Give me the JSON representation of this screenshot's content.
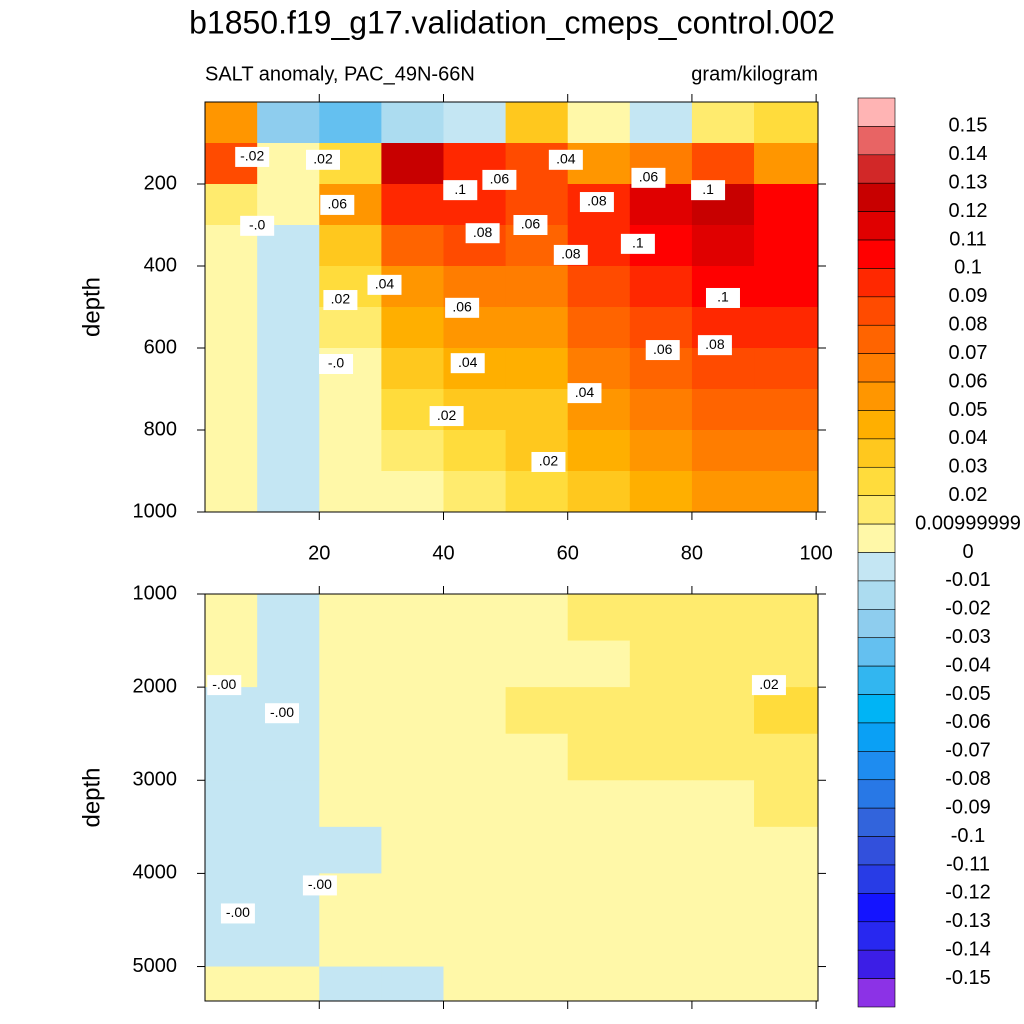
{
  "chart_data": [
    {
      "type": "contour",
      "title": "b1850.f19_g17.validation_cmeps_control.002",
      "subtitle_left": "SALT anomaly, PAC_49N-66N",
      "subtitle_right": "gram/kilogram",
      "ylabel": "depth",
      "xlim": [
        1.6,
        100.3
      ],
      "ylim": [
        0,
        1000
      ],
      "yreverse": true,
      "xticks": [
        20,
        40,
        60,
        80,
        100
      ],
      "yticks": [
        200,
        400,
        600,
        800,
        1000
      ],
      "x_edges": [
        1.6,
        10,
        20,
        30,
        40,
        50,
        60,
        70,
        80,
        90,
        100.3
      ],
      "y_edges": [
        0,
        100,
        200,
        300,
        400,
        500,
        600,
        700,
        800,
        900,
        1000
      ],
      "z": [
        [
          0.05,
          -0.03,
          -0.04,
          -0.02,
          -0.01,
          0.03,
          0.0,
          -0.01,
          0.01,
          0.02
        ],
        [
          0.08,
          0.0,
          0.02,
          0.12,
          0.09,
          0.08,
          0.05,
          0.06,
          0.08,
          0.05
        ],
        [
          0.01,
          0.005,
          0.05,
          0.09,
          0.09,
          0.08,
          0.09,
          0.11,
          0.12,
          0.1
        ],
        [
          0.005,
          -0.005,
          0.03,
          0.07,
          0.08,
          0.07,
          0.09,
          0.1,
          0.11,
          0.1
        ],
        [
          0.005,
          -0.005,
          0.02,
          0.05,
          0.06,
          0.06,
          0.08,
          0.09,
          0.1,
          0.1
        ],
        [
          0.005,
          -0.005,
          0.01,
          0.04,
          0.05,
          0.05,
          0.07,
          0.08,
          0.09,
          0.09
        ],
        [
          0.005,
          -0.005,
          0.005,
          0.03,
          0.04,
          0.04,
          0.06,
          0.07,
          0.08,
          0.08
        ],
        [
          0.005,
          -0.005,
          0.005,
          0.02,
          0.03,
          0.03,
          0.05,
          0.06,
          0.07,
          0.07
        ],
        [
          0.005,
          -0.005,
          0.005,
          0.01,
          0.02,
          0.03,
          0.04,
          0.05,
          0.06,
          0.06
        ],
        [
          0.005,
          -0.005,
          0.005,
          0.005,
          0.01,
          0.02,
          0.03,
          0.04,
          0.05,
          0.05
        ]
      ],
      "contour_labels": [
        {
          "label": "-.02",
          "x": 9.2,
          "y": 134
        },
        {
          "label": ".02",
          "x": 20.6,
          "y": 141
        },
        {
          "label": ".06",
          "x": 22.9,
          "y": 251
        },
        {
          "label": "-.0",
          "x": 10,
          "y": 302
        },
        {
          "label": ".1",
          "x": 42.7,
          "y": 215
        },
        {
          "label": ".06",
          "x": 49,
          "y": 190
        },
        {
          "label": ".08",
          "x": 46.3,
          "y": 320
        },
        {
          "label": ".06",
          "x": 54,
          "y": 300
        },
        {
          "label": ".04",
          "x": 59.7,
          "y": 141
        },
        {
          "label": ".08",
          "x": 64.7,
          "y": 244
        },
        {
          "label": ".08",
          "x": 60.5,
          "y": 373
        },
        {
          "label": ".06",
          "x": 73,
          "y": 185
        },
        {
          "label": ".1",
          "x": 82.6,
          "y": 215
        },
        {
          "label": ".1",
          "x": 71.3,
          "y": 346
        },
        {
          "label": ".04",
          "x": 30.5,
          "y": 446
        },
        {
          "label": ".02",
          "x": 23.4,
          "y": 483
        },
        {
          "label": ".06",
          "x": 43,
          "y": 502
        },
        {
          "label": ".1",
          "x": 85,
          "y": 478
        },
        {
          "label": ".06",
          "x": 75.3,
          "y": 605
        },
        {
          "label": ".08",
          "x": 83.7,
          "y": 593
        },
        {
          "label": "-.0",
          "x": 22.7,
          "y": 639
        },
        {
          "label": ".04",
          "x": 43.9,
          "y": 637
        },
        {
          "label": ".04",
          "x": 62.7,
          "y": 710
        },
        {
          "label": ".02",
          "x": 40.5,
          "y": 766
        },
        {
          "label": ".02",
          "x": 56.9,
          "y": 878
        }
      ],
      "colorbar": {
        "levels": [
          0.15,
          0.14,
          0.13,
          0.12,
          0.11,
          0.1,
          0.09,
          0.08,
          0.07,
          0.06,
          0.05,
          0.04,
          0.03,
          0.02,
          0.00999999,
          0,
          -0.01,
          -0.02,
          -0.03,
          -0.04,
          -0.05,
          -0.06,
          -0.07,
          -0.08,
          -0.09,
          -0.1,
          -0.11,
          -0.12,
          -0.13,
          -0.14,
          -0.15
        ],
        "colors": [
          "#ffb4b4",
          "#e86464",
          "#d22828",
          "#c80000",
          "#e00000",
          "#ff0000",
          "#ff2800",
          "#ff4b00",
          "#ff6400",
          "#ff7d00",
          "#ff9600",
          "#ffaf00",
          "#ffc81e",
          "#ffdc3c",
          "#ffeb6e",
          "#fff8a8",
          "#c4e6f3",
          "#acdcf0",
          "#8ecdee",
          "#64c0f0",
          "#32b6f0",
          "#00b4f5",
          "#0aa0f5",
          "#1e8cf0",
          "#2878e6",
          "#3264dc",
          "#3250dc",
          "#283ce6",
          "#1414ff",
          "#2828f0",
          "#3c1ee6",
          "#8c32e6"
        ]
      }
    },
    {
      "type": "contour",
      "ylabel": "depth",
      "xlim": [
        1.6,
        100.3
      ],
      "ylim": [
        1000,
        5370
      ],
      "yreverse": true,
      "xticks": [
        20,
        40,
        60,
        80,
        100
      ],
      "yticks": [
        1000,
        2000,
        3000,
        4000,
        5000
      ],
      "x_edges": [
        1.6,
        10,
        20,
        30,
        40,
        50,
        60,
        70,
        80,
        90,
        100.3
      ],
      "y_edges": [
        1000,
        1500,
        2000,
        2500,
        3000,
        3500,
        4000,
        4500,
        5000,
        5370
      ],
      "z": [
        [
          0.005,
          -0.005,
          0.005,
          0.005,
          0.005,
          0.005,
          0.01,
          0.01,
          0.01,
          0.015
        ],
        [
          0.005,
          -0.005,
          0.005,
          0.005,
          0.005,
          0.005,
          0.005,
          0.01,
          0.01,
          0.015
        ],
        [
          -0.005,
          -0.005,
          0.005,
          0.005,
          0.005,
          0.01,
          0.01,
          0.01,
          0.01,
          0.02
        ],
        [
          -0.005,
          -0.005,
          0.005,
          0.005,
          0.005,
          0.005,
          0.01,
          0.01,
          0.01,
          0.01
        ],
        [
          -0.005,
          -0.005,
          0.005,
          0.005,
          0.005,
          0.005,
          0.005,
          0.005,
          0.005,
          0.01
        ],
        [
          -0.005,
          -0.005,
          -0.005,
          0.005,
          0.005,
          0.005,
          0.005,
          0.005,
          0.005,
          0.005
        ],
        [
          -0.005,
          -0.005,
          0.005,
          0.005,
          0.005,
          0.005,
          0.005,
          0.005,
          0.005,
          0.005
        ],
        [
          -0.005,
          -0.005,
          0.005,
          0.005,
          0.005,
          0.005,
          0.005,
          0.005,
          0.005,
          0.005
        ],
        [
          0.005,
          0.005,
          -0.005,
          -0.005,
          0.005,
          0.005,
          0.005,
          0.005,
          0.005,
          0.005
        ]
      ],
      "contour_labels": [
        {
          "label": "-.00",
          "x": 4.7,
          "y": 1978
        },
        {
          "label": ".02",
          "x": 92.4,
          "y": 1978
        },
        {
          "label": "-.00",
          "x": 14,
          "y": 2280
        },
        {
          "label": "-.00",
          "x": 20.1,
          "y": 4129
        },
        {
          "label": "-.00",
          "x": 6.9,
          "y": 4430
        }
      ]
    }
  ]
}
